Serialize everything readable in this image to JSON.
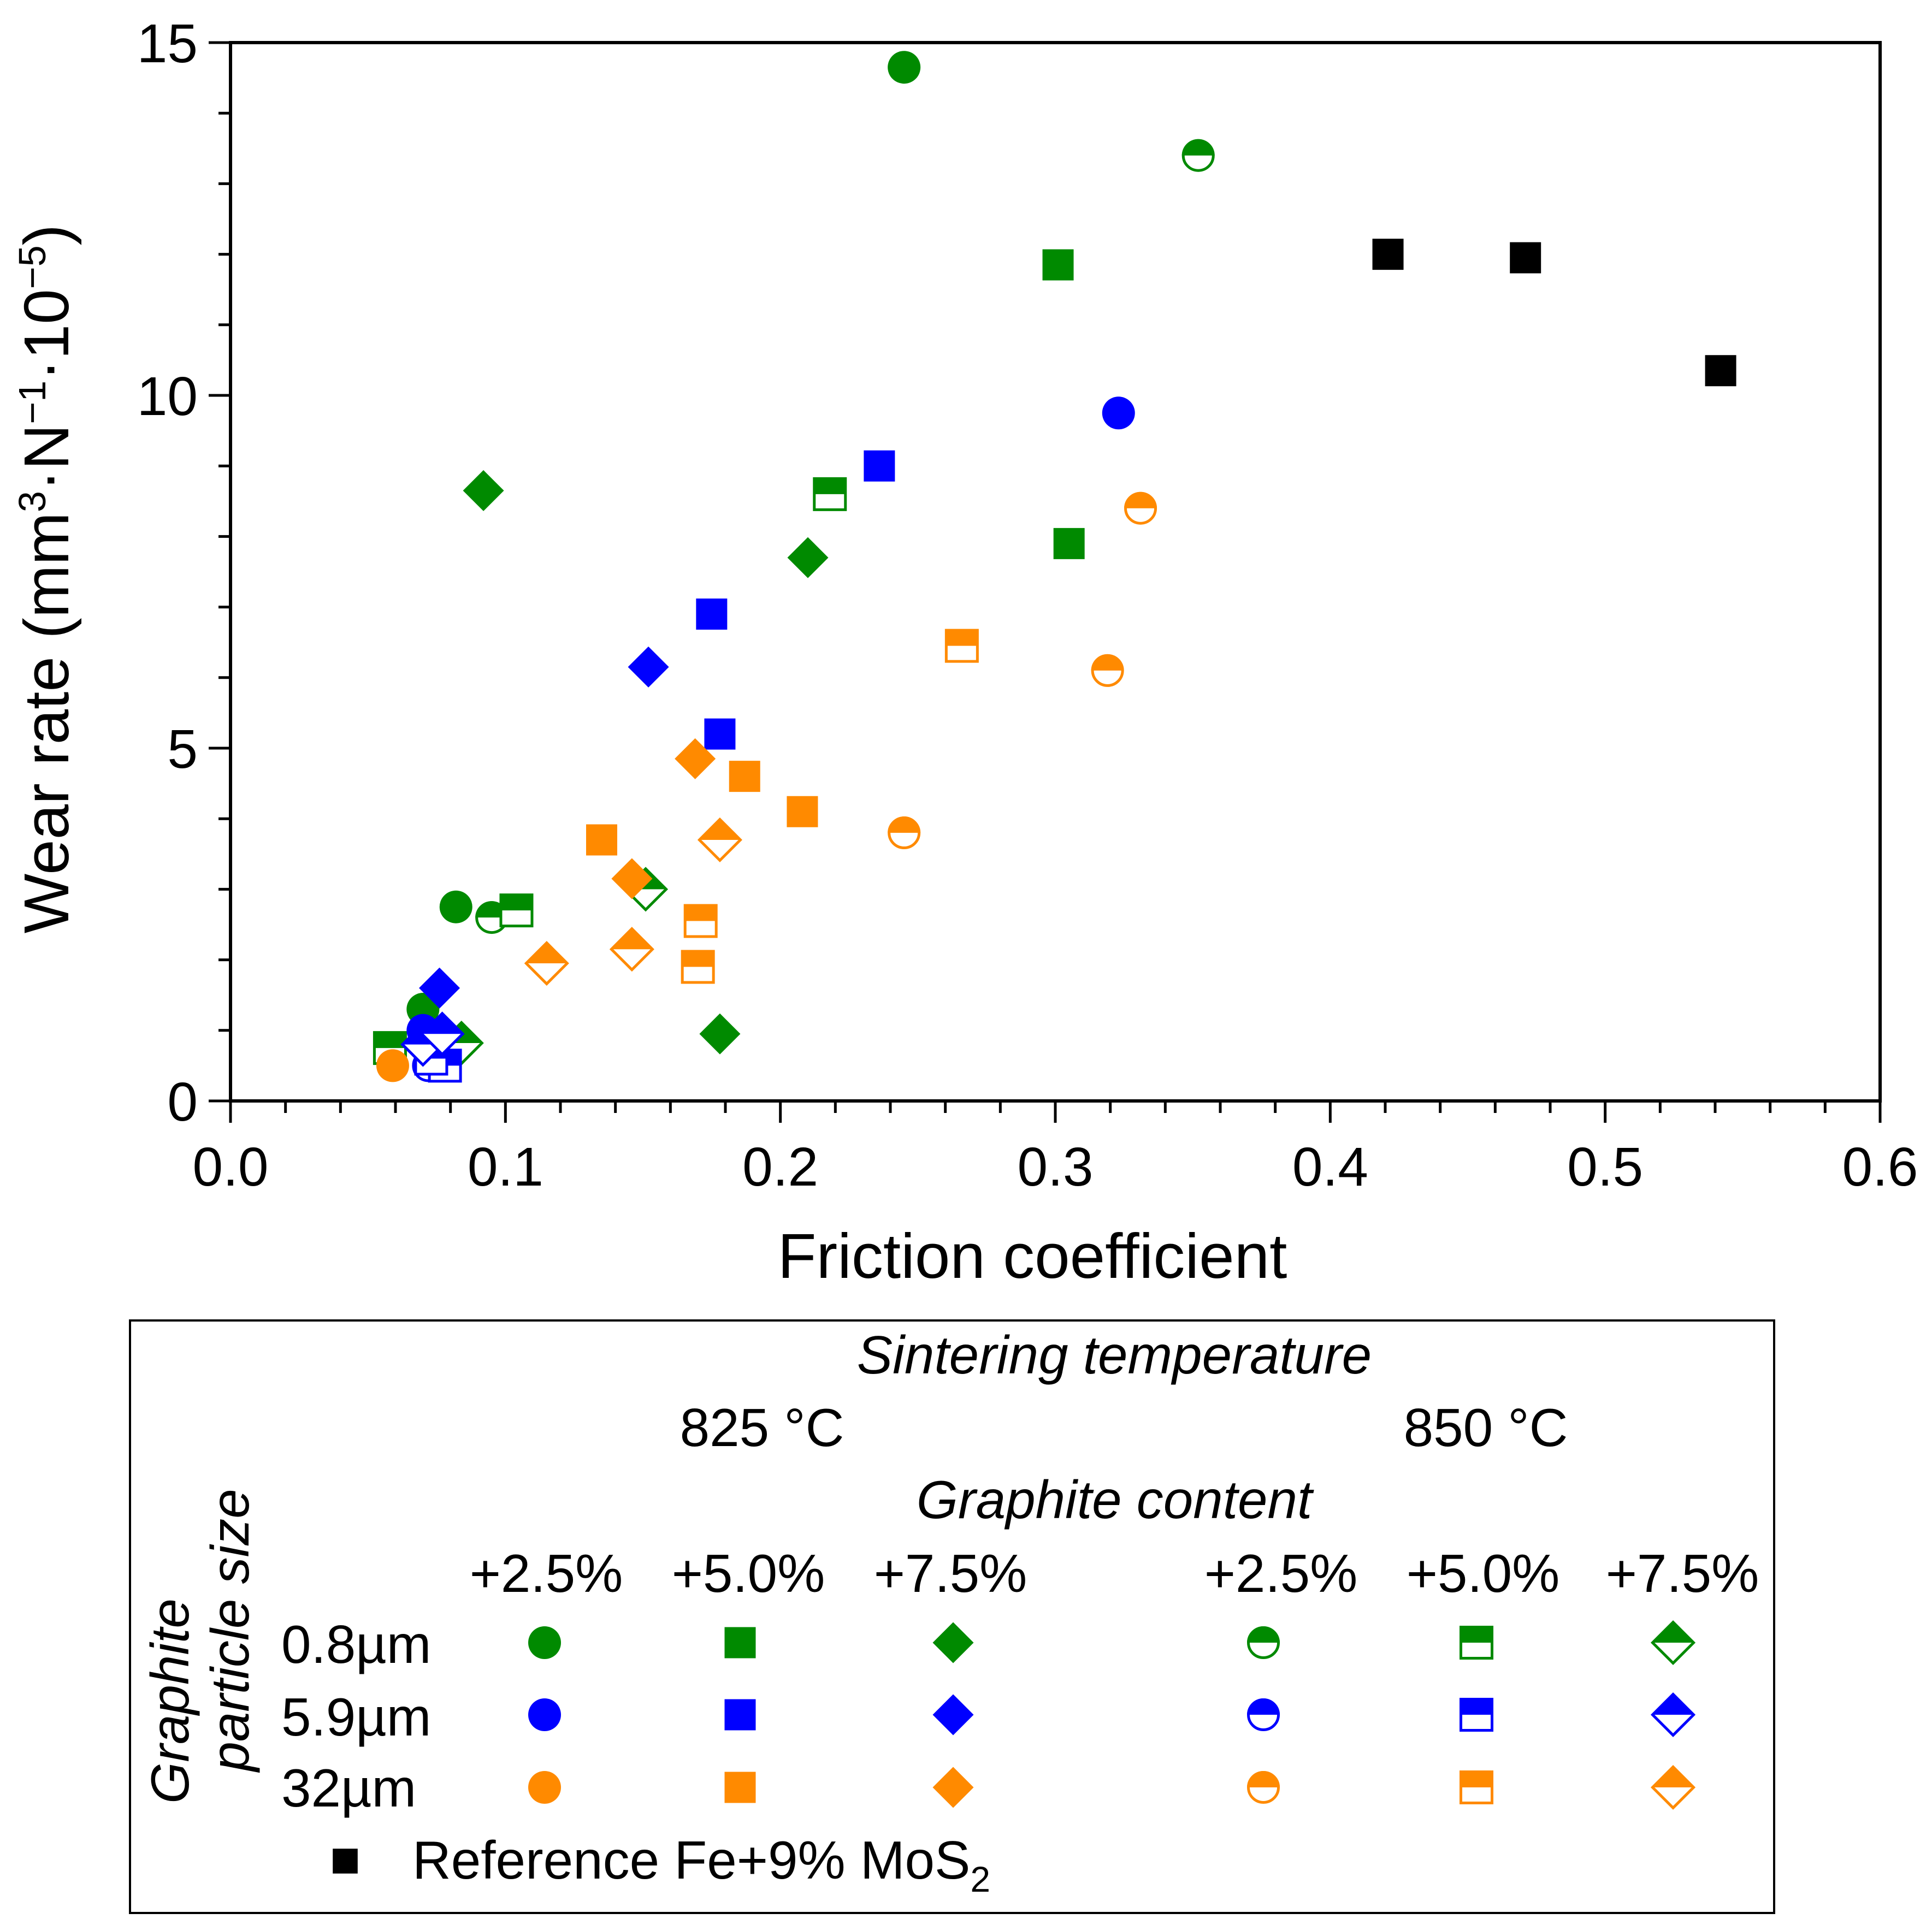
{
  "chart_data": {
    "type": "scatter",
    "xlabel": "Friction coefficient",
    "ylabel": "Wear rate (mm³·N⁻¹·10⁻⁵)",
    "xlim": [
      0.0,
      0.6
    ],
    "ylim": [
      0,
      15
    ],
    "xticks": [
      "0.0",
      "0.1",
      "0.2",
      "0.3",
      "0.4",
      "0.5",
      "0.6"
    ],
    "yticks": [
      "0",
      "5",
      "10",
      "15"
    ],
    "colors": {
      "0.8µm": "#008a00",
      "5.9µm": "#0000ff",
      "32µm": "#ff8a00",
      "reference": "#000000"
    },
    "series": [
      {
        "name": "0.8µm 825°C +2.5%",
        "size": "0.8µm",
        "fill": "solid",
        "shape": "circle",
        "x": [
          0.245,
          0.082,
          0.07
        ],
        "y": [
          14.65,
          2.75,
          1.3
        ]
      },
      {
        "name": "0.8µm 825°C +5.0%",
        "size": "0.8µm",
        "fill": "solid",
        "shape": "square",
        "x": [
          0.301,
          0.305
        ],
        "y": [
          11.85,
          7.9
        ]
      },
      {
        "name": "0.8µm 825°C +7.5%",
        "size": "0.8µm",
        "fill": "solid",
        "shape": "diamond",
        "x": [
          0.092,
          0.21,
          0.178
        ],
        "y": [
          8.65,
          7.7,
          0.95
        ]
      },
      {
        "name": "0.8µm 850°C +2.5%",
        "size": "0.8µm",
        "fill": "half",
        "shape": "circle",
        "x": [
          0.352,
          0.095
        ],
        "y": [
          13.4,
          2.6
        ]
      },
      {
        "name": "0.8µm 850°C +5.0%",
        "size": "0.8µm",
        "fill": "half",
        "shape": "square",
        "x": [
          0.218,
          0.104,
          0.058
        ],
        "y": [
          8.6,
          2.7,
          0.75
        ]
      },
      {
        "name": "0.8µm 850°C +7.5%",
        "size": "0.8µm",
        "fill": "half",
        "shape": "diamond",
        "x": [
          0.151,
          0.084
        ],
        "y": [
          3.0,
          0.82
        ]
      },
      {
        "name": "5.9µm 825°C +2.5%",
        "size": "5.9µm",
        "fill": "solid",
        "shape": "circle",
        "x": [
          0.323,
          0.07
        ],
        "y": [
          9.75,
          1.0
        ]
      },
      {
        "name": "5.9µm 825°C +5.0%",
        "size": "5.9µm",
        "fill": "solid",
        "shape": "square",
        "x": [
          0.236,
          0.175,
          0.178
        ],
        "y": [
          9.0,
          6.9,
          5.2
        ]
      },
      {
        "name": "5.9µm 825°C +7.5%",
        "size": "5.9µm",
        "fill": "solid",
        "shape": "diamond",
        "x": [
          0.152,
          0.076
        ],
        "y": [
          6.15,
          1.6
        ]
      },
      {
        "name": "5.9µm 850°C +2.5%",
        "size": "5.9µm",
        "fill": "half",
        "shape": "circle",
        "x": [
          0.072,
          0.074
        ],
        "y": [
          0.5,
          0.62
        ]
      },
      {
        "name": "5.9µm 850°C +5.0%",
        "size": "5.9µm",
        "fill": "half",
        "shape": "square",
        "x": [
          0.078,
          0.073
        ],
        "y": [
          0.5,
          0.6
        ]
      },
      {
        "name": "5.9µm 850°C +7.5%",
        "size": "5.9µm",
        "fill": "half",
        "shape": "diamond",
        "x": [
          0.07,
          0.077
        ],
        "y": [
          0.8,
          0.95
        ]
      },
      {
        "name": "32µm 825°C +2.5%",
        "size": "32µm",
        "fill": "solid",
        "shape": "circle",
        "x": [
          0.059
        ],
        "y": [
          0.5
        ]
      },
      {
        "name": "32µm 825°C +5.0%",
        "size": "32µm",
        "fill": "solid",
        "shape": "square",
        "x": [
          0.187,
          0.208,
          0.135
        ],
        "y": [
          4.6,
          4.1,
          3.7
        ]
      },
      {
        "name": "32µm 825°C +7.5%",
        "size": "32µm",
        "fill": "solid",
        "shape": "diamond",
        "x": [
          0.169,
          0.146
        ],
        "y": [
          4.85,
          3.15
        ]
      },
      {
        "name": "32µm 850°C +2.5%",
        "size": "32µm",
        "fill": "half",
        "shape": "circle",
        "x": [
          0.331,
          0.319,
          0.245
        ],
        "y": [
          8.4,
          6.1,
          3.8
        ]
      },
      {
        "name": "32µm 850°C +5.0%",
        "size": "32µm",
        "fill": "half",
        "shape": "square",
        "x": [
          0.266,
          0.171,
          0.17
        ],
        "y": [
          6.45,
          2.55,
          1.9
        ]
      },
      {
        "name": "32µm 850°C +7.5%",
        "size": "32µm",
        "fill": "half",
        "shape": "diamond",
        "x": [
          0.178,
          0.146,
          0.115
        ],
        "y": [
          3.7,
          2.15,
          1.95
        ]
      },
      {
        "name": "Reference Fe+9% MoS2",
        "size": "reference",
        "fill": "solid",
        "shape": "square",
        "x": [
          0.421,
          0.471,
          0.542
        ],
        "y": [
          12.0,
          11.95,
          10.35
        ]
      }
    ]
  },
  "legend": {
    "sintering_title": "Sintering temperature",
    "temp_825": "825 °C",
    "temp_850": "850 °C",
    "graphite_title": "Graphite content",
    "contents": [
      "+2.5%",
      "+5.0%",
      "+7.5%",
      "+2.5%",
      "+5.0%",
      "+7.5%"
    ],
    "size_title_line1": "Graphite",
    "size_title_line2": "particle size",
    "sizes": [
      "0.8µm",
      "5.9µm",
      "32µm"
    ],
    "reference_label": "Reference Fe+9% MoS",
    "reference_subscript": "2"
  }
}
